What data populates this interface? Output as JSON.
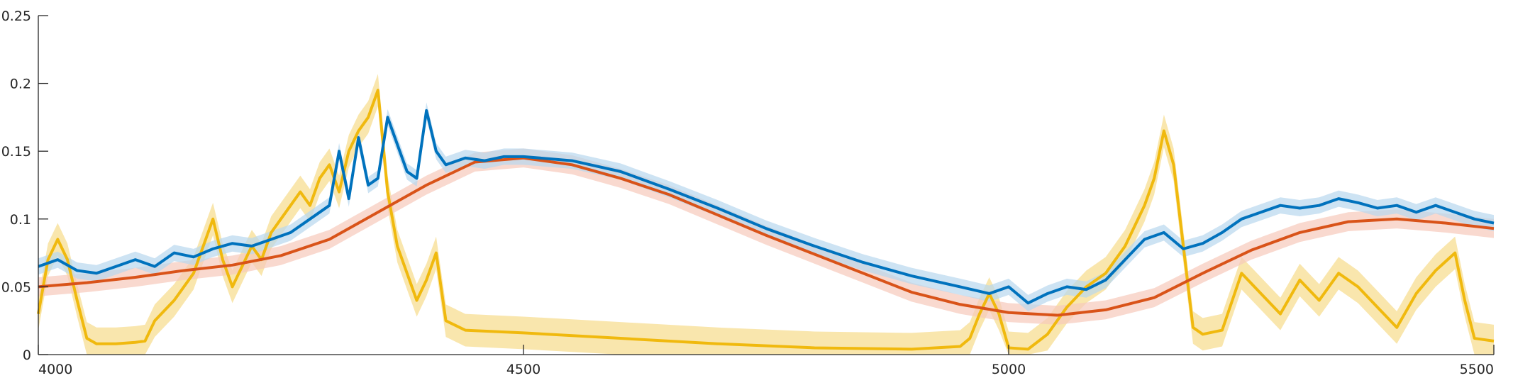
{
  "chart_data": {
    "type": "line",
    "title": "",
    "xlabel": "",
    "ylabel": "",
    "xlim": [
      4000,
      5500
    ],
    "ylim": [
      0,
      0.25
    ],
    "grid": false,
    "legend": "none",
    "x_ticks": [
      {
        "value": 4000,
        "label": "4000"
      },
      {
        "value": 4500,
        "label": "4500"
      },
      {
        "value": 5000,
        "label": "5000"
      },
      {
        "value": 5500,
        "label": "5500"
      }
    ],
    "y_ticks": [
      {
        "value": 0,
        "label": "0"
      },
      {
        "value": 0.05,
        "label": "0.05"
      },
      {
        "value": 0.1,
        "label": "0.1"
      },
      {
        "value": 0.15,
        "label": "0.15"
      },
      {
        "value": 0.2,
        "label": "0.2"
      },
      {
        "value": 0.25,
        "label": "0.25"
      }
    ],
    "series": [
      {
        "color": "#F0B90E",
        "band_color": "#F7DB8A",
        "band_halfwidth": 0.012,
        "points": [
          [
            4000,
            0.03
          ],
          [
            4010,
            0.07
          ],
          [
            4020,
            0.085
          ],
          [
            4030,
            0.07
          ],
          [
            4040,
            0.04
          ],
          [
            4050,
            0.012
          ],
          [
            4060,
            0.008
          ],
          [
            4080,
            0.008
          ],
          [
            4100,
            0.009
          ],
          [
            4110,
            0.01
          ],
          [
            4120,
            0.025
          ],
          [
            4140,
            0.04
          ],
          [
            4160,
            0.06
          ],
          [
            4170,
            0.08
          ],
          [
            4180,
            0.1
          ],
          [
            4190,
            0.07
          ],
          [
            4200,
            0.05
          ],
          [
            4210,
            0.065
          ],
          [
            4220,
            0.08
          ],
          [
            4230,
            0.07
          ],
          [
            4240,
            0.09
          ],
          [
            4250,
            0.1
          ],
          [
            4260,
            0.11
          ],
          [
            4270,
            0.12
          ],
          [
            4280,
            0.11
          ],
          [
            4290,
            0.13
          ],
          [
            4300,
            0.14
          ],
          [
            4310,
            0.12
          ],
          [
            4320,
            0.15
          ],
          [
            4330,
            0.165
          ],
          [
            4340,
            0.175
          ],
          [
            4350,
            0.195
          ],
          [
            4360,
            0.12
          ],
          [
            4370,
            0.08
          ],
          [
            4380,
            0.06
          ],
          [
            4390,
            0.04
          ],
          [
            4400,
            0.055
          ],
          [
            4410,
            0.075
          ],
          [
            4420,
            0.025
          ],
          [
            4440,
            0.018
          ],
          [
            4500,
            0.016
          ],
          [
            4600,
            0.012
          ],
          [
            4700,
            0.008
          ],
          [
            4800,
            0.005
          ],
          [
            4900,
            0.004
          ],
          [
            4950,
            0.006
          ],
          [
            4960,
            0.012
          ],
          [
            4970,
            0.03
          ],
          [
            4980,
            0.045
          ],
          [
            4990,
            0.03
          ],
          [
            5000,
            0.005
          ],
          [
            5020,
            0.004
          ],
          [
            5040,
            0.015
          ],
          [
            5060,
            0.035
          ],
          [
            5080,
            0.05
          ],
          [
            5100,
            0.06
          ],
          [
            5120,
            0.08
          ],
          [
            5130,
            0.095
          ],
          [
            5140,
            0.11
          ],
          [
            5150,
            0.13
          ],
          [
            5160,
            0.165
          ],
          [
            5170,
            0.14
          ],
          [
            5180,
            0.08
          ],
          [
            5190,
            0.02
          ],
          [
            5200,
            0.015
          ],
          [
            5220,
            0.018
          ],
          [
            5240,
            0.06
          ],
          [
            5260,
            0.045
          ],
          [
            5280,
            0.03
          ],
          [
            5300,
            0.055
          ],
          [
            5320,
            0.04
          ],
          [
            5340,
            0.06
          ],
          [
            5360,
            0.05
          ],
          [
            5380,
            0.035
          ],
          [
            5400,
            0.02
          ],
          [
            5420,
            0.045
          ],
          [
            5440,
            0.062
          ],
          [
            5460,
            0.075
          ],
          [
            5470,
            0.04
          ],
          [
            5480,
            0.012
          ],
          [
            5500,
            0.01
          ]
        ]
      },
      {
        "color": "#D95319",
        "band_color": "#F7C9BA",
        "band_halfwidth": 0.007,
        "points": [
          [
            4000,
            0.05
          ],
          [
            4050,
            0.053
          ],
          [
            4100,
            0.057
          ],
          [
            4150,
            0.062
          ],
          [
            4200,
            0.066
          ],
          [
            4250,
            0.073
          ],
          [
            4300,
            0.085
          ],
          [
            4350,
            0.105
          ],
          [
            4400,
            0.125
          ],
          [
            4450,
            0.142
          ],
          [
            4500,
            0.145
          ],
          [
            4550,
            0.14
          ],
          [
            4600,
            0.13
          ],
          [
            4650,
            0.118
          ],
          [
            4700,
            0.103
          ],
          [
            4750,
            0.088
          ],
          [
            4800,
            0.074
          ],
          [
            4850,
            0.06
          ],
          [
            4900,
            0.046
          ],
          [
            4950,
            0.037
          ],
          [
            5000,
            0.031
          ],
          [
            5050,
            0.029
          ],
          [
            5100,
            0.033
          ],
          [
            5150,
            0.042
          ],
          [
            5200,
            0.06
          ],
          [
            5250,
            0.077
          ],
          [
            5300,
            0.09
          ],
          [
            5350,
            0.098
          ],
          [
            5400,
            0.1
          ],
          [
            5450,
            0.097
          ],
          [
            5500,
            0.093
          ]
        ]
      },
      {
        "color": "#0072BD",
        "band_color": "#B8D7EE",
        "band_halfwidth": 0.006,
        "points": [
          [
            4000,
            0.065
          ],
          [
            4020,
            0.07
          ],
          [
            4040,
            0.062
          ],
          [
            4060,
            0.06
          ],
          [
            4080,
            0.065
          ],
          [
            4100,
            0.07
          ],
          [
            4120,
            0.065
          ],
          [
            4140,
            0.075
          ],
          [
            4160,
            0.072
          ],
          [
            4180,
            0.078
          ],
          [
            4200,
            0.082
          ],
          [
            4220,
            0.08
          ],
          [
            4240,
            0.085
          ],
          [
            4260,
            0.09
          ],
          [
            4280,
            0.1
          ],
          [
            4300,
            0.11
          ],
          [
            4310,
            0.15
          ],
          [
            4320,
            0.115
          ],
          [
            4330,
            0.16
          ],
          [
            4340,
            0.125
          ],
          [
            4350,
            0.13
          ],
          [
            4360,
            0.175
          ],
          [
            4370,
            0.155
          ],
          [
            4380,
            0.135
          ],
          [
            4390,
            0.13
          ],
          [
            4400,
            0.18
          ],
          [
            4410,
            0.15
          ],
          [
            4420,
            0.14
          ],
          [
            4440,
            0.145
          ],
          [
            4460,
            0.143
          ],
          [
            4480,
            0.146
          ],
          [
            4500,
            0.146
          ],
          [
            4550,
            0.143
          ],
          [
            4600,
            0.135
          ],
          [
            4650,
            0.122
          ],
          [
            4700,
            0.108
          ],
          [
            4750,
            0.093
          ],
          [
            4800,
            0.08
          ],
          [
            4850,
            0.068
          ],
          [
            4900,
            0.058
          ],
          [
            4950,
            0.05
          ],
          [
            4980,
            0.045
          ],
          [
            5000,
            0.05
          ],
          [
            5020,
            0.038
          ],
          [
            5040,
            0.045
          ],
          [
            5060,
            0.05
          ],
          [
            5080,
            0.048
          ],
          [
            5100,
            0.055
          ],
          [
            5120,
            0.07
          ],
          [
            5140,
            0.085
          ],
          [
            5160,
            0.09
          ],
          [
            5180,
            0.078
          ],
          [
            5200,
            0.082
          ],
          [
            5220,
            0.09
          ],
          [
            5240,
            0.1
          ],
          [
            5260,
            0.105
          ],
          [
            5280,
            0.11
          ],
          [
            5300,
            0.108
          ],
          [
            5320,
            0.11
          ],
          [
            5340,
            0.115
          ],
          [
            5360,
            0.112
          ],
          [
            5380,
            0.108
          ],
          [
            5400,
            0.11
          ],
          [
            5420,
            0.105
          ],
          [
            5440,
            0.11
          ],
          [
            5460,
            0.105
          ],
          [
            5480,
            0.1
          ],
          [
            5500,
            0.097
          ]
        ]
      }
    ]
  }
}
